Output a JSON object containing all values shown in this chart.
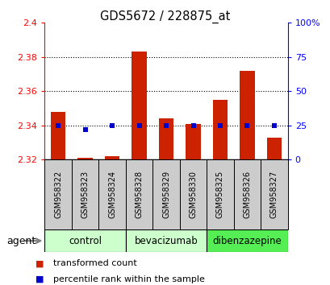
{
  "title": "GDS5672 / 228875_at",
  "samples": [
    "GSM958322",
    "GSM958323",
    "GSM958324",
    "GSM958328",
    "GSM958329",
    "GSM958330",
    "GSM958325",
    "GSM958326",
    "GSM958327"
  ],
  "red_values": [
    2.348,
    2.321,
    2.322,
    2.383,
    2.344,
    2.341,
    2.355,
    2.372,
    2.333
  ],
  "blue_values": [
    25,
    22,
    25,
    25,
    25,
    25,
    25,
    25,
    25
  ],
  "groups": [
    {
      "label": "control",
      "indices": [
        0,
        1,
        2
      ],
      "color": "#ccffcc"
    },
    {
      "label": "bevacizumab",
      "indices": [
        3,
        4,
        5
      ],
      "color": "#ccffcc"
    },
    {
      "label": "dibenzazepine",
      "indices": [
        6,
        7,
        8
      ],
      "color": "#55ee55"
    }
  ],
  "ylim_left": [
    2.32,
    2.4
  ],
  "ylim_right": [
    0,
    100
  ],
  "yticks_left": [
    2.32,
    2.34,
    2.36,
    2.38,
    2.4
  ],
  "yticks_right": [
    0,
    25,
    50,
    75,
    100
  ],
  "ytick_labels_right": [
    "0",
    "25",
    "50",
    "75",
    "100%"
  ],
  "red_color": "#cc2200",
  "blue_color": "#0000cc",
  "bar_width": 0.55,
  "agent_label": "agent",
  "legend_red": "transformed count",
  "legend_blue": "percentile rank within the sample",
  "bar_base": 2.32,
  "sample_box_color": "#cccccc",
  "dotted_ticks": [
    2.34,
    2.36,
    2.38
  ]
}
